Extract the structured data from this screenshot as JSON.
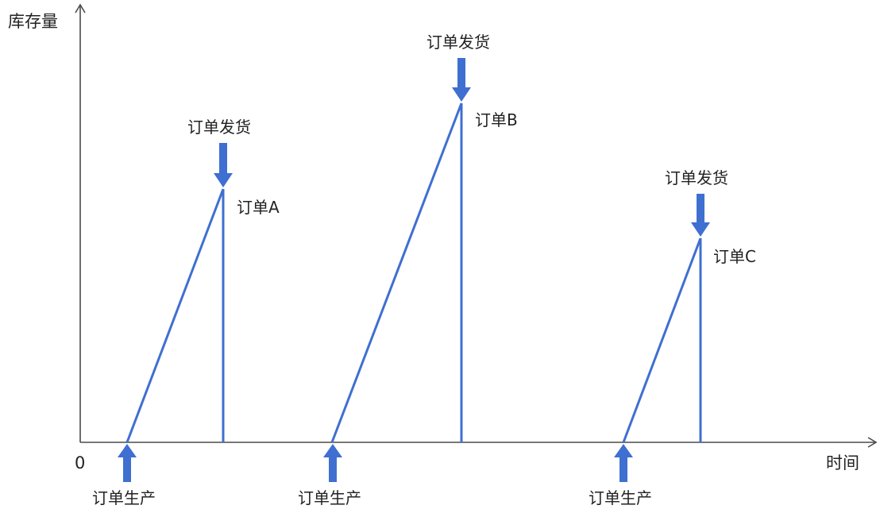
{
  "axes": {
    "y_label": "库存量",
    "x_label": "时间",
    "origin_label": "0"
  },
  "orders": [
    {
      "name": "订单A",
      "ship_label": "订单发货",
      "produce_label": "订单生产"
    },
    {
      "name": "订单B",
      "ship_label": "订单发货",
      "produce_label": "订单生产"
    },
    {
      "name": "订单C",
      "ship_label": "订单发货",
      "produce_label": "订单生产"
    }
  ],
  "colors": {
    "series": "#3f6fd1",
    "axis": "#4a4a4a",
    "text": "#222222"
  }
}
